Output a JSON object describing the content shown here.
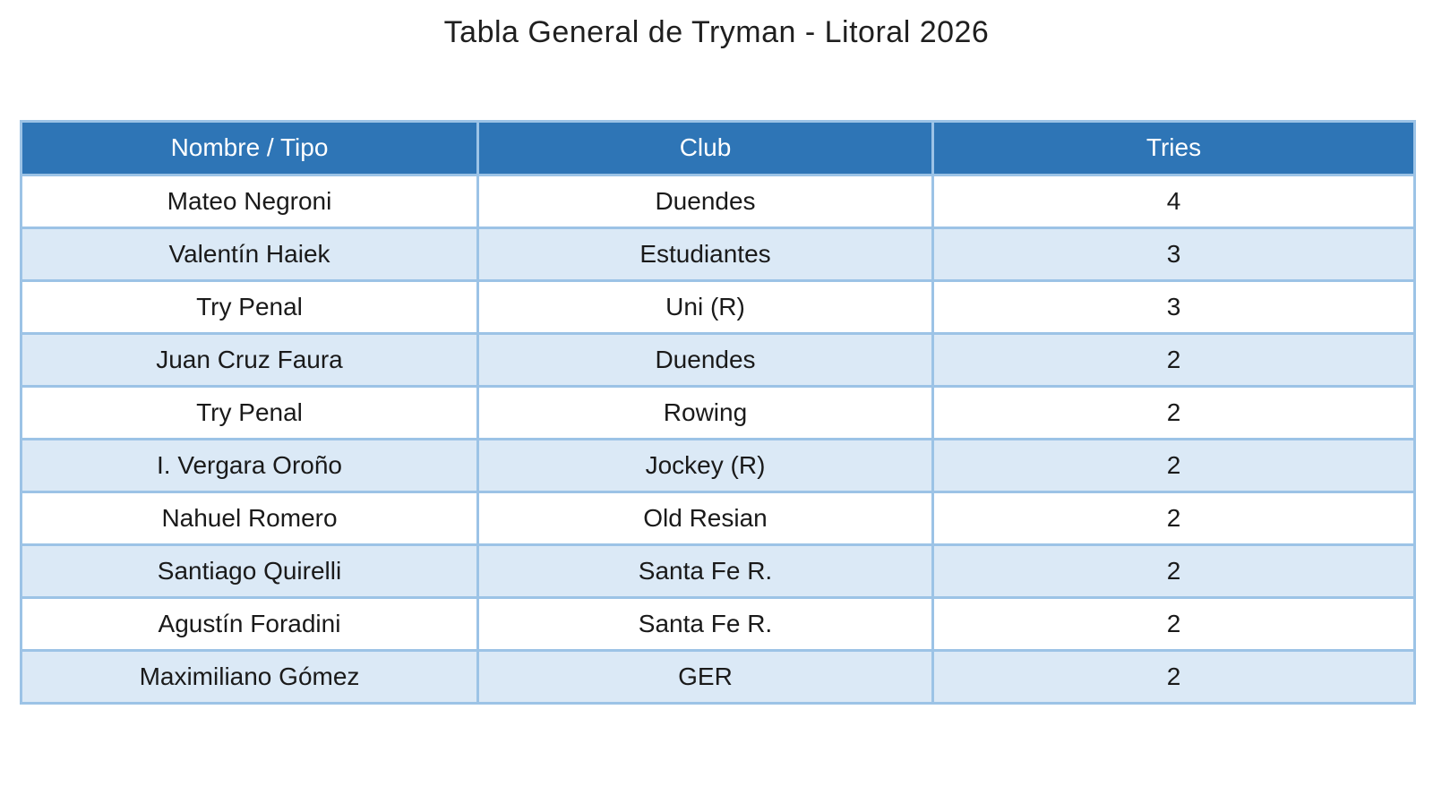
{
  "title": "Tabla General de Tryman - Litoral 2026",
  "chart_data": {
    "type": "table",
    "title": "Tabla General de Tryman - Litoral 2026",
    "columns": [
      "Nombre / Tipo",
      "Club",
      "Tries"
    ],
    "rows": [
      [
        "Mateo Negroni",
        "Duendes",
        "4"
      ],
      [
        "Valentín Haiek",
        "Estudiantes",
        "3"
      ],
      [
        "Try Penal",
        "Uni (R)",
        "3"
      ],
      [
        "Juan Cruz Faura",
        "Duendes",
        "2"
      ],
      [
        "Try Penal",
        "Rowing",
        "2"
      ],
      [
        "I. Vergara Oroño",
        "Jockey (R)",
        "2"
      ],
      [
        "Nahuel Romero",
        "Old Resian",
        "2"
      ],
      [
        "Santiago Quirelli",
        "Santa Fe R.",
        "2"
      ],
      [
        "Agustín Foradini",
        "Santa Fe R.",
        "2"
      ],
      [
        "Maximiliano Gómez",
        "GER",
        "2"
      ]
    ],
    "layout": {
      "banded_rows": true,
      "header_position": "top",
      "alignment": "center"
    }
  },
  "colors": {
    "header_bg": "#2E75B6",
    "header_text": "#FFFFFF",
    "border": "#9CC3E6",
    "band_row_bg": "#DBE9F6",
    "plain_row_bg": "#FFFFFF",
    "body_text": "#1A1A1A",
    "title_text": "#1F1F1F",
    "page_bg": "#FFFFFF"
  }
}
